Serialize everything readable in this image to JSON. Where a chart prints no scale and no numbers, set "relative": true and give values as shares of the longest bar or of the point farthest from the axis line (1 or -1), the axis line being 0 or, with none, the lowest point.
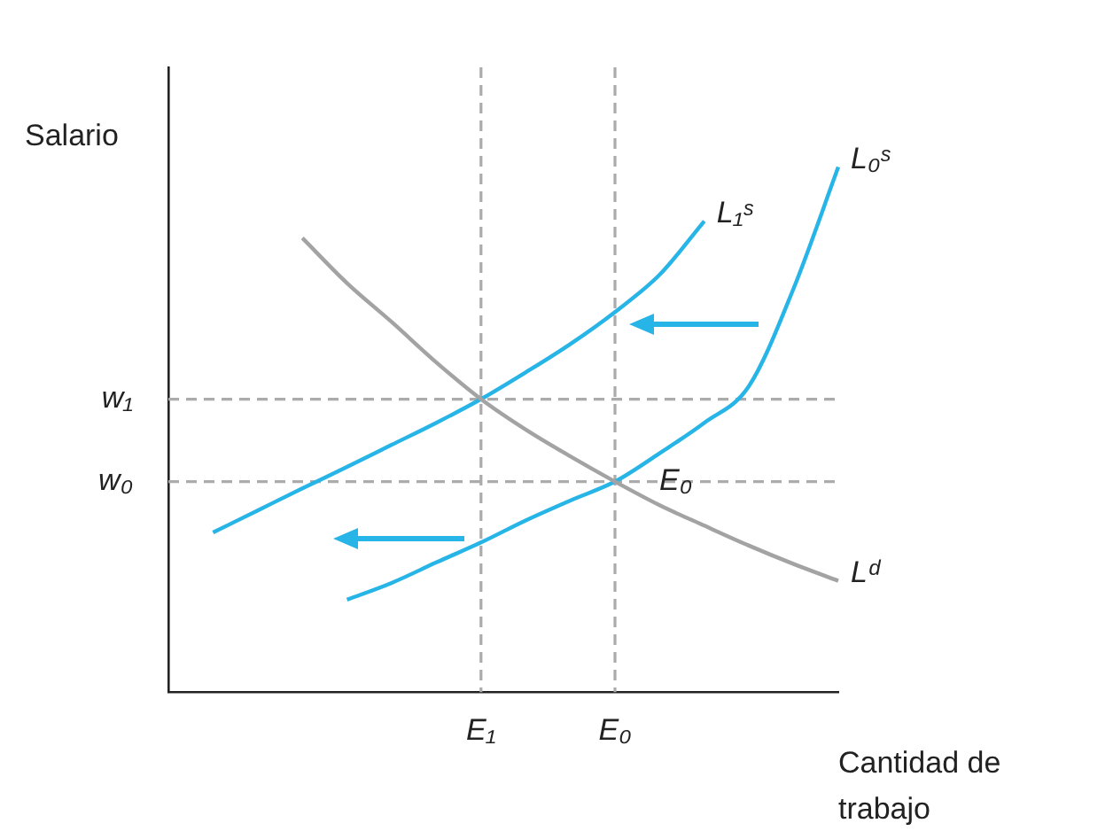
{
  "chart_data": {
    "type": "line",
    "relative": true,
    "marker": "none",
    "ylabel": "Salario",
    "xlabel": "Cantidad de trabajo",
    "categories": [
      null,
      null,
      null,
      null,
      null,
      null,
      null,
      "E₁",
      null,
      null,
      "E₀",
      null,
      null,
      null,
      null,
      null
    ],
    "series": [
      {
        "name": "Lᵈ",
        "color": "#a3a3a3",
        "values": [
          null,
          null,
          null,
          0.865,
          0.779,
          0.705,
          0.628,
          0.558,
          0.5,
          0.449,
          0.401,
          0.356,
          0.317,
          0.279,
          0.244,
          0.212
        ]
      },
      {
        "name": "L₁ˢ",
        "color": "#27b4e6",
        "values": [
          null,
          0.304,
          0.346,
          0.388,
          0.429,
          0.471,
          0.513,
          0.558,
          0.609,
          0.663,
          0.724,
          0.795,
          0.897,
          null,
          null,
          null
        ]
      },
      {
        "name": "L₀ˢ",
        "color": "#27b4e6",
        "values": [
          null,
          null,
          null,
          null,
          0.176,
          0.208,
          0.247,
          0.285,
          0.327,
          0.365,
          0.401,
          0.455,
          0.513,
          0.583,
          0.769,
          1
        ]
      }
    ],
    "ref_lines": [
      {
        "axis": "y",
        "value": 0.558,
        "label": "w₁",
        "color": "#ababab",
        "line_style": "dashed"
      },
      {
        "axis": "y",
        "value": 0.401,
        "label": "w₀",
        "color": "#ababab",
        "line_style": "dashed"
      },
      {
        "axis": "x",
        "value": "E₁",
        "label": null,
        "color": "#ababab",
        "line_style": "dashed"
      },
      {
        "axis": "x",
        "value": "E₀",
        "label": null,
        "color": "#ababab",
        "line_style": "dashed"
      }
    ],
    "annotations": [
      {
        "text": "E₀",
        "x": "E₀",
        "y": 0.401
      }
    ]
  }
}
